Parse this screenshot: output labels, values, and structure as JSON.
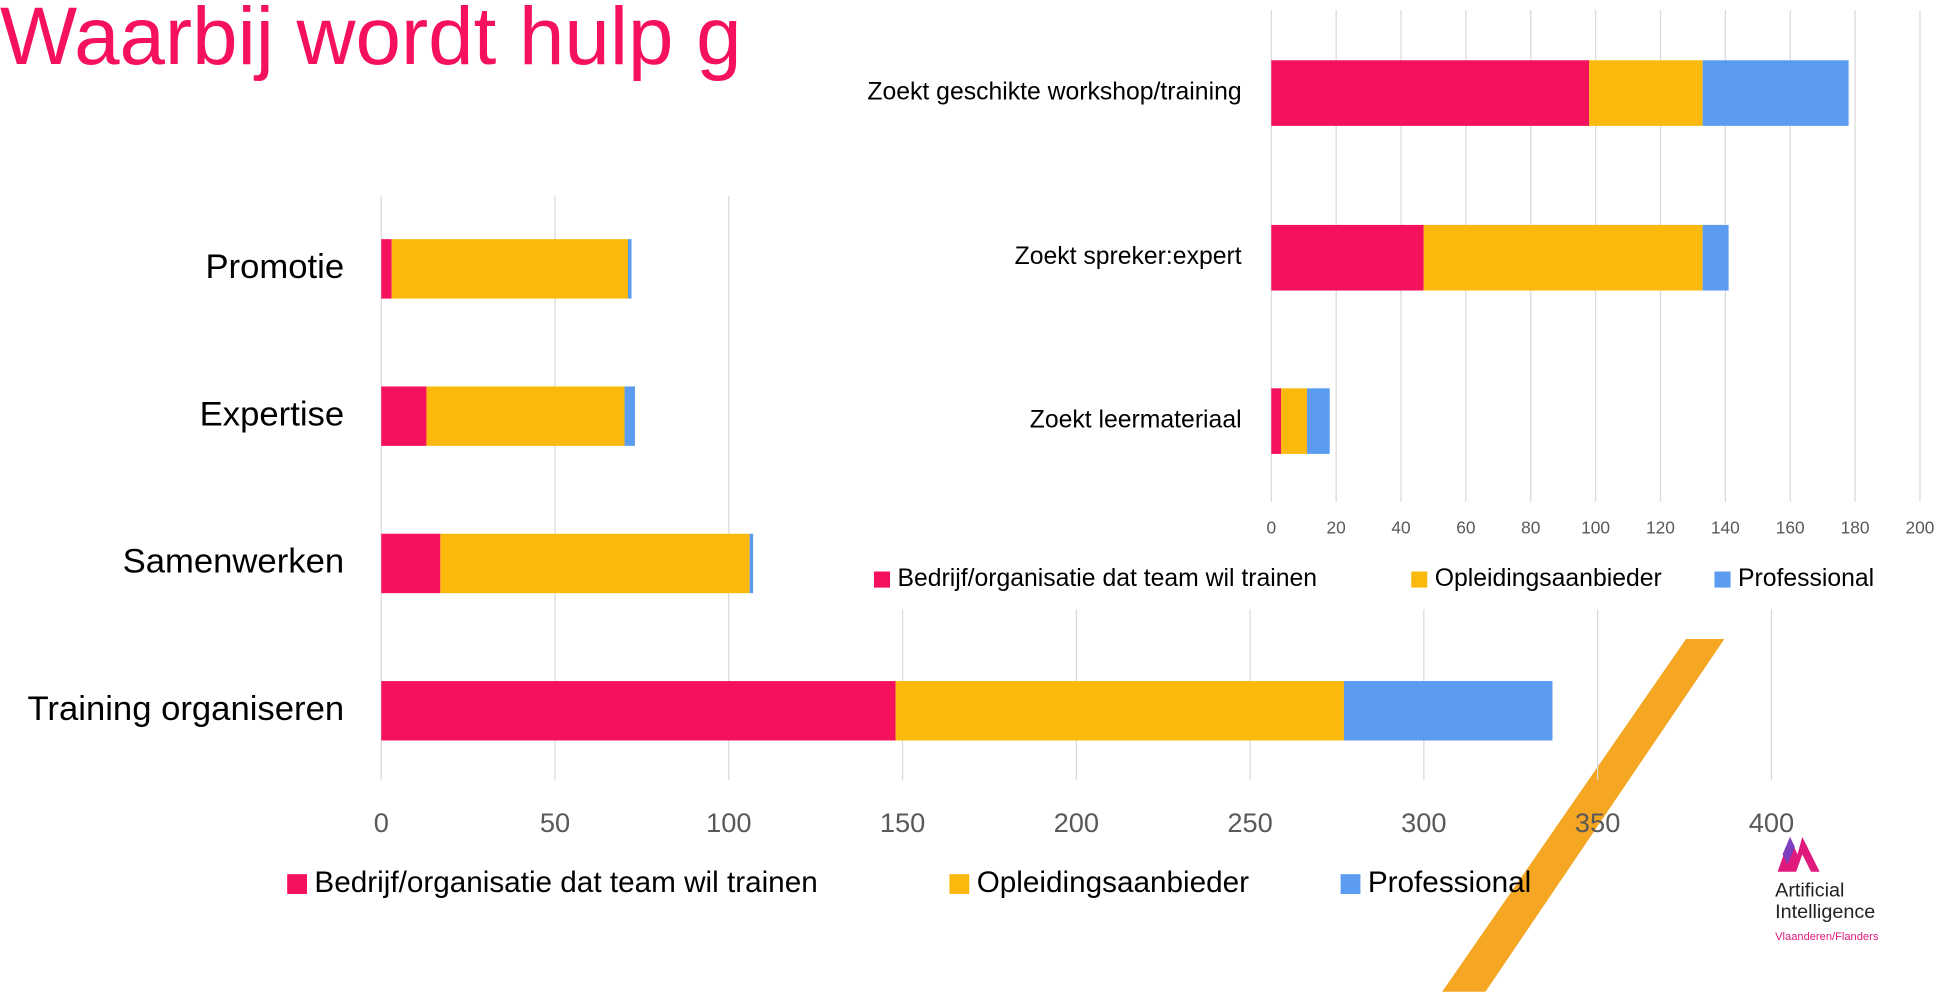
{
  "title": "Waarbij wordt hulp g",
  "logo": {
    "line1": "Artificial",
    "line2": "Intelligence",
    "line3": "Vlaanderen/Flanders"
  },
  "chart_data": [
    {
      "type": "bar",
      "orientation": "horizontal",
      "stacked": true,
      "categories": [
        "Promotie",
        "Expertise",
        "Samenwerken",
        "Training organiseren"
      ],
      "series": [
        {
          "name": "Bedrijf/organisatie dat team wil trainen",
          "color": "#f5115b",
          "values": [
            3,
            13,
            17,
            148
          ]
        },
        {
          "name": "Opleidingsaanbieder",
          "color": "#fbb90d",
          "values": [
            68,
            57,
            89,
            129
          ]
        },
        {
          "name": "Professional",
          "color": "#5b9bf0",
          "values": [
            1,
            3,
            1,
            60
          ]
        }
      ],
      "xlim": [
        0,
        400
      ],
      "xticks": [
        0,
        50,
        100,
        150,
        200,
        250,
        300,
        350,
        400
      ],
      "grid": true,
      "legend": "bottom"
    },
    {
      "type": "bar",
      "orientation": "horizontal",
      "stacked": true,
      "categories": [
        "Zoekt geschikte workshop/training",
        "Zoekt spreker:expert",
        "Zoekt leermateriaal"
      ],
      "series": [
        {
          "name": "Bedrijf/organisatie dat team wil trainen",
          "color": "#f5115b",
          "values": [
            98,
            47,
            3
          ]
        },
        {
          "name": "Opleidingsaanbieder",
          "color": "#fbb90d",
          "values": [
            35,
            86,
            8
          ]
        },
        {
          "name": "Professional",
          "color": "#5b9bf0",
          "values": [
            45,
            8,
            7
          ]
        }
      ],
      "xlim": [
        0,
        200
      ],
      "xticks": [
        0,
        20,
        40,
        60,
        80,
        100,
        120,
        140,
        160,
        180,
        200
      ],
      "grid": true,
      "legend": "bottom"
    }
  ]
}
